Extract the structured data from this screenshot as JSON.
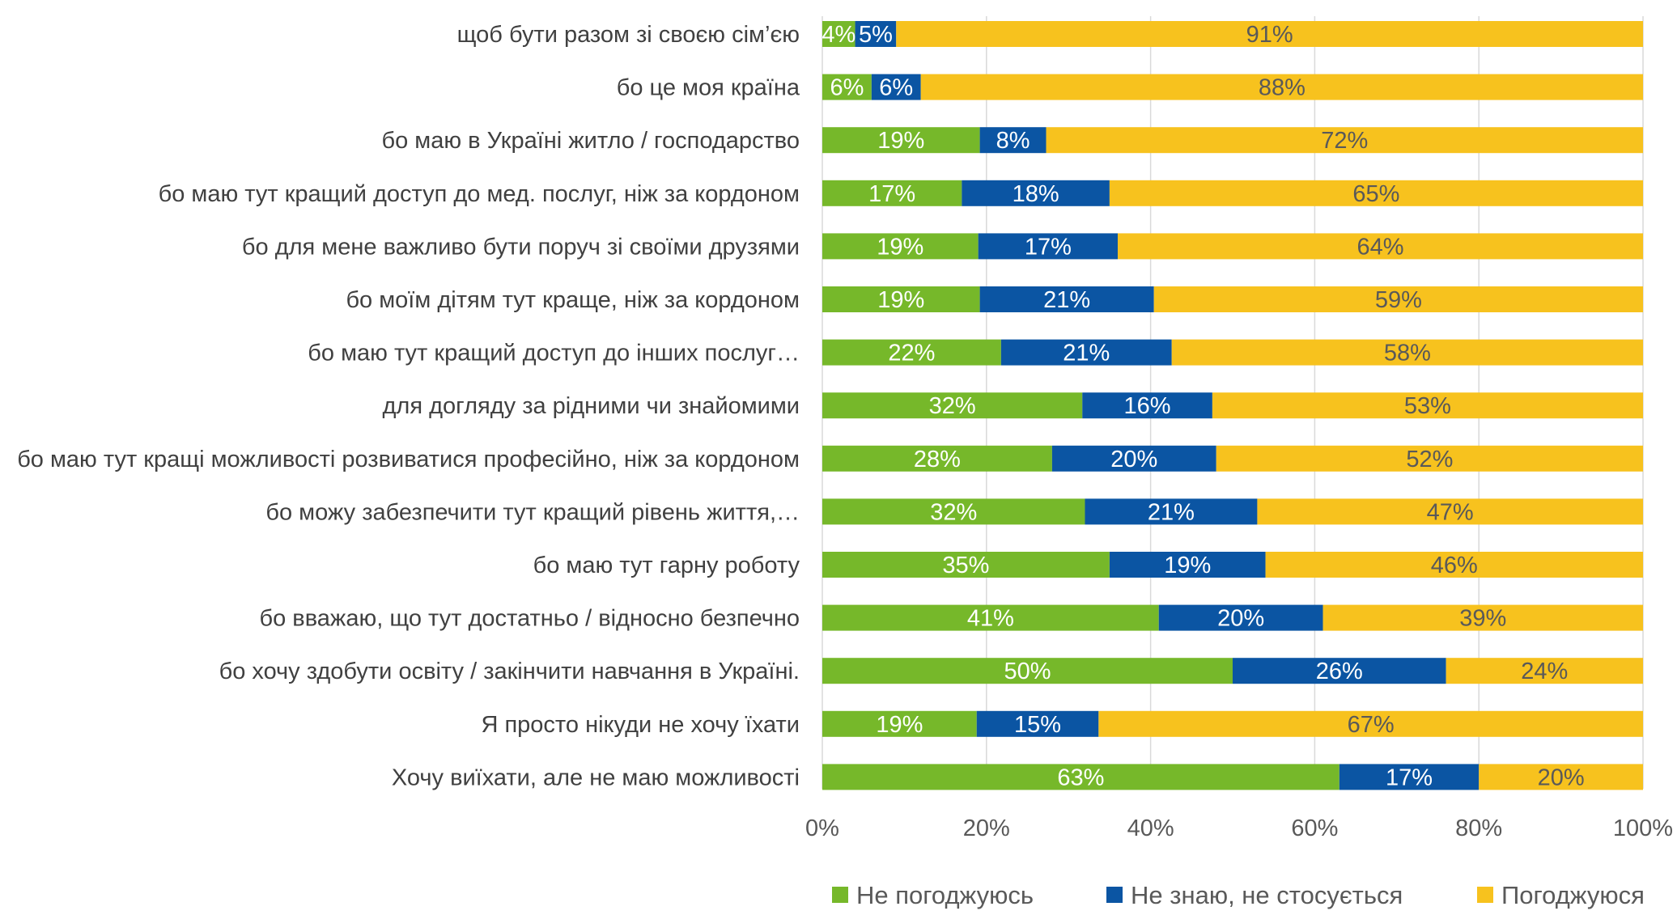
{
  "chart_data": {
    "type": "bar",
    "orientation": "horizontal",
    "stacked": true,
    "categories": [
      "щоб бути разом зі своєю сім’єю",
      "бо це моя країна",
      "бо маю в Україні житло / господарство",
      "бо маю тут кращий доступ до мед. послуг, ніж за кордоном",
      "бо для мене важливо бути поруч зі своїми друзями",
      "бо моїм дітям тут краще, ніж за кордоном",
      "бо маю тут кращий доступ до інших послуг…",
      "для догляду за рідними чи знайомими",
      "бо маю тут кращі можливості розвиватися професійно, ніж за кордоном",
      "бо можу забезпечити тут кращий рівень життя,…",
      "бо маю тут гарну роботу",
      "бо вважаю, що тут достатньо / відносно безпечно",
      "бо хочу здобути освіту / закінчити навчання в Україні.",
      "Я просто нікуди не хочу їхати",
      "Хочу виїхати, але не маю можливості"
    ],
    "series": [
      {
        "name": "Не погоджуюсь",
        "color": "#76B82A",
        "label_color": "#ffffff",
        "values": [
          4,
          6,
          19,
          17,
          19,
          19,
          22,
          32,
          28,
          32,
          35,
          41,
          50,
          19,
          63
        ],
        "labels": [
          "4%",
          "6%",
          "19%",
          "17%",
          "19%",
          "19%",
          "22%",
          "32%",
          "28%",
          "32%",
          "35%",
          "41%",
          "50%",
          "19%",
          "63%"
        ]
      },
      {
        "name": "Не знаю, не стосується",
        "color": "#0B55A3",
        "label_color": "#ffffff",
        "values": [
          5,
          6,
          8,
          18,
          17,
          21,
          21,
          16,
          20,
          21,
          19,
          20,
          26,
          15,
          17
        ],
        "labels": [
          "5%",
          "6%",
          "8%",
          "18%",
          "17%",
          "21%",
          "21%",
          "16%",
          "20%",
          "21%",
          "19%",
          "20%",
          "26%",
          "15%",
          "17%"
        ]
      },
      {
        "name": "Погоджуюся",
        "color": "#F7C21E",
        "label_color": "#595959",
        "values": [
          91,
          88,
          72,
          65,
          64,
          59,
          58,
          53,
          52,
          47,
          46,
          39,
          24,
          67,
          20
        ],
        "labels": [
          "91%",
          "88%",
          "72%",
          "65%",
          "64%",
          "59%",
          "58%",
          "53%",
          "52%",
          "47%",
          "46%",
          "39%",
          "24%",
          "67%",
          "20%"
        ]
      }
    ],
    "x_ticks": [
      "0%",
      "20%",
      "40%",
      "60%",
      "80%",
      "100%"
    ],
    "xlim": [
      0,
      100
    ],
    "grid": "vertical",
    "legend_position": "bottom"
  }
}
